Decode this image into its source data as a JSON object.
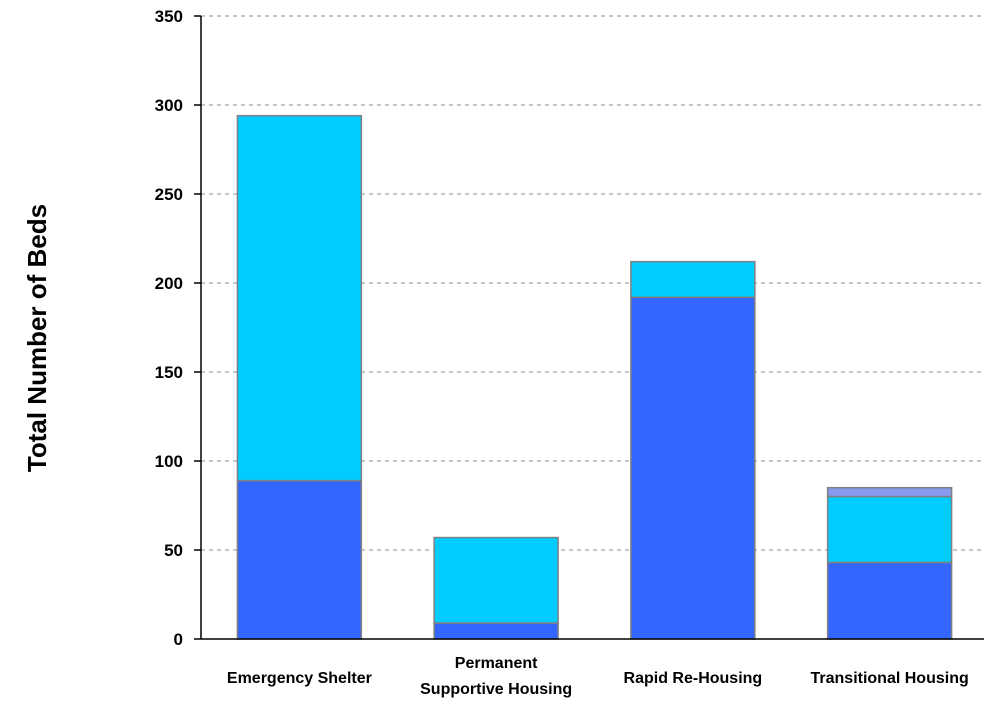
{
  "chart_data": {
    "type": "bar",
    "stacked": true,
    "categories": [
      [
        "Emergency Shelter"
      ],
      [
        "Permanent",
        "Supportive Housing"
      ],
      [
        "Rapid Re-Housing"
      ],
      [
        "Transitional Housing"
      ]
    ],
    "series": [
      {
        "values": [
          89,
          9,
          192,
          43
        ],
        "color": "#3366ff"
      },
      {
        "values": [
          205,
          48,
          20,
          37
        ],
        "color": "#00ccff"
      },
      {
        "values": [
          0,
          0,
          0,
          5
        ],
        "color": "#8899ee"
      }
    ],
    "ylabel": "Total Number of Beds",
    "ylim": [
      0,
      350
    ],
    "yticks": [
      0,
      50,
      100,
      150,
      200,
      250,
      300,
      350
    ],
    "grid": true,
    "legend": "none"
  }
}
